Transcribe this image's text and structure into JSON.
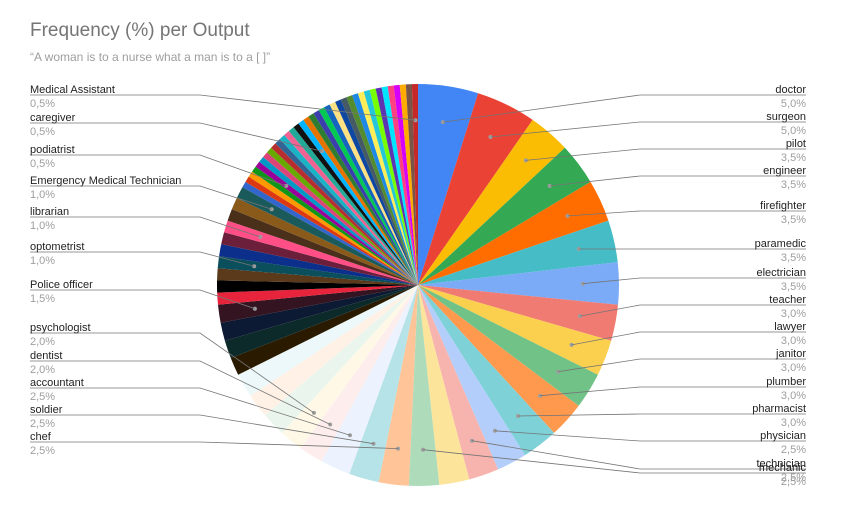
{
  "chart_data": {
    "type": "pie",
    "title": "Frequency (%) per Output",
    "subtitle": "“A woman is to a nurse what a man is to a [ ]”",
    "value_unit": "%",
    "slices": [
      {
        "label": "doctor",
        "value": 5.0,
        "value_text": "5,0%",
        "color": "#4285f4"
      },
      {
        "label": "surgeon",
        "value": 5.0,
        "value_text": "5,0%",
        "color": "#ea4335"
      },
      {
        "label": "pilot",
        "value": 3.5,
        "value_text": "3,5%",
        "color": "#fbbc04"
      },
      {
        "label": "engineer",
        "value": 3.5,
        "value_text": "3,5%",
        "color": "#34a853"
      },
      {
        "label": "firefighter",
        "value": 3.5,
        "value_text": "3,5%",
        "color": "#ff6d01"
      },
      {
        "label": "paramedic",
        "value": 3.5,
        "value_text": "3,5%",
        "color": "#46bdc6"
      },
      {
        "label": "electrician",
        "value": 3.5,
        "value_text": "3,5%",
        "color": "#7baaf7"
      },
      {
        "label": "teacher",
        "value": 3.0,
        "value_text": "3,0%",
        "color": "#f07b72"
      },
      {
        "label": "lawyer",
        "value": 3.0,
        "value_text": "3,0%",
        "color": "#fcd04f"
      },
      {
        "label": "janitor",
        "value": 3.0,
        "value_text": "3,0%",
        "color": "#71c287"
      },
      {
        "label": "plumber",
        "value": 3.0,
        "value_text": "3,0%",
        "color": "#ff994d"
      },
      {
        "label": "pharmacist",
        "value": 3.0,
        "value_text": "3,0%",
        "color": "#7ed1d7"
      },
      {
        "label": "physician",
        "value": 2.5,
        "value_text": "2,5%",
        "color": "#b3cefb"
      },
      {
        "label": "technician",
        "value": 2.5,
        "value_text": "2,5%",
        "color": "#f7b4ae"
      },
      {
        "label": "",
        "value": 2.5,
        "color": "#fde49b"
      },
      {
        "label": "mechanic",
        "value": 2.5,
        "value_text": "2,5%",
        "color": "#aedcba"
      },
      {
        "label": "chef",
        "value": 2.5,
        "value_text": "2,5%",
        "color": "#ffc599"
      },
      {
        "label": "soldier",
        "value": 2.5,
        "value_text": "2,5%",
        "color": "#b5e3e7"
      },
      {
        "label": "accountant",
        "value": 2.5,
        "value_text": "2,5%",
        "color": "#ecf3fe"
      },
      {
        "label": "dentist",
        "value": 2.0,
        "value_text": "2,0%",
        "color": "#fdeeed"
      },
      {
        "label": "psychologist",
        "value": 2.0,
        "value_text": "2,0%",
        "color": "#fff8e6"
      },
      {
        "label": "",
        "value": 2.0,
        "color": "#eaf6ed"
      },
      {
        "label": "",
        "value": 2.0,
        "color": "#fff1e6"
      },
      {
        "label": "",
        "value": 2.0,
        "color": "#ecf8f9"
      },
      {
        "label": "",
        "value": 1.5,
        "color": "#2a1a00"
      },
      {
        "label": "",
        "value": 1.5,
        "color": "#0d2a2a"
      },
      {
        "label": "",
        "value": 1.5,
        "color": "#0d1a33"
      },
      {
        "label": "Police officer",
        "value": 1.5,
        "value_text": "1,5%",
        "color": "#331420"
      },
      {
        "label": "",
        "value": 1.0,
        "color": "#e8243c"
      },
      {
        "label": "",
        "value": 1.0,
        "color": "#000000"
      },
      {
        "label": "",
        "value": 1.0,
        "color": "#5a3a1a"
      },
      {
        "label": "optometrist",
        "value": 1.0,
        "value_text": "1,0%",
        "color": "#0b4f5c"
      },
      {
        "label": "",
        "value": 1.0,
        "color": "#0b2f8a"
      },
      {
        "label": "",
        "value": 1.0,
        "color": "#6b1f3a"
      },
      {
        "label": "librarian",
        "value": 1.0,
        "value_text": "1,0%",
        "color": "#ff4f86"
      },
      {
        "label": "",
        "value": 1.0,
        "color": "#4a2f1a"
      },
      {
        "label": "",
        "value": 1.0,
        "color": "#8a5a1a"
      },
      {
        "label": "Emergency Medical Technician",
        "value": 1.0,
        "value_text": "1,0%",
        "color": "#1a5a5a"
      },
      {
        "label": "",
        "value": 0.5,
        "color": "#3366cc"
      },
      {
        "label": "",
        "value": 0.5,
        "color": "#dc3912"
      },
      {
        "label": "",
        "value": 0.5,
        "color": "#ff9900"
      },
      {
        "label": "",
        "value": 0.5,
        "color": "#109618"
      },
      {
        "label": "podiatrist",
        "value": 0.5,
        "value_text": "0,5%",
        "color": "#990099"
      },
      {
        "label": "",
        "value": 0.5,
        "color": "#0099c6"
      },
      {
        "label": "",
        "value": 0.5,
        "color": "#dd4477"
      },
      {
        "label": "",
        "value": 0.5,
        "color": "#66aa00"
      },
      {
        "label": "",
        "value": 0.5,
        "color": "#b82e2e"
      },
      {
        "label": "",
        "value": 0.5,
        "color": "#316395"
      },
      {
        "label": "",
        "value": 0.5,
        "color": "#1ab3c6"
      },
      {
        "label": "",
        "value": 0.5,
        "color": "#f06292"
      },
      {
        "label": "",
        "value": 0.5,
        "color": "#22aa99"
      },
      {
        "label": "",
        "value": 0.5,
        "color": "#111111"
      },
      {
        "label": "caregiver",
        "value": 0.5,
        "value_text": "0,5%",
        "color": "#00b3ff"
      },
      {
        "label": "",
        "value": 0.5,
        "color": "#e67300"
      },
      {
        "label": "",
        "value": 0.5,
        "color": "#2e7d32"
      },
      {
        "label": "",
        "value": 0.5,
        "color": "#3b3eac"
      },
      {
        "label": "",
        "value": 0.5,
        "color": "#00c853"
      },
      {
        "label": "",
        "value": 0.5,
        "color": "#1565c0"
      },
      {
        "label": "",
        "value": 0.5,
        "color": "#ffe082"
      },
      {
        "label": "",
        "value": 0.5,
        "color": "#0d47a1"
      },
      {
        "label": "",
        "value": 0.5,
        "color": "#455a64"
      },
      {
        "label": "",
        "value": 0.5,
        "color": "#558b2f"
      },
      {
        "label": "",
        "value": 0.5,
        "color": "#1e88e5"
      },
      {
        "label": "",
        "value": 0.5,
        "color": "#ffee58"
      },
      {
        "label": "",
        "value": 0.5,
        "color": "#26c6da"
      },
      {
        "label": "",
        "value": 0.5,
        "color": "#76ff03"
      },
      {
        "label": "",
        "value": 0.5,
        "color": "#5e35b1"
      },
      {
        "label": "",
        "value": 0.5,
        "color": "#00e5ff"
      },
      {
        "label": "",
        "value": 0.5,
        "color": "#ff4081"
      },
      {
        "label": "",
        "value": 0.5,
        "color": "#d500f9"
      },
      {
        "label": "",
        "value": 0.5,
        "color": "#ffab00"
      },
      {
        "label": "",
        "value": 0.5,
        "color": "#795548"
      },
      {
        "label": "Medical Assistant",
        "value": 0.5,
        "value_text": "0,5%",
        "color": "#c62828"
      }
    ]
  }
}
